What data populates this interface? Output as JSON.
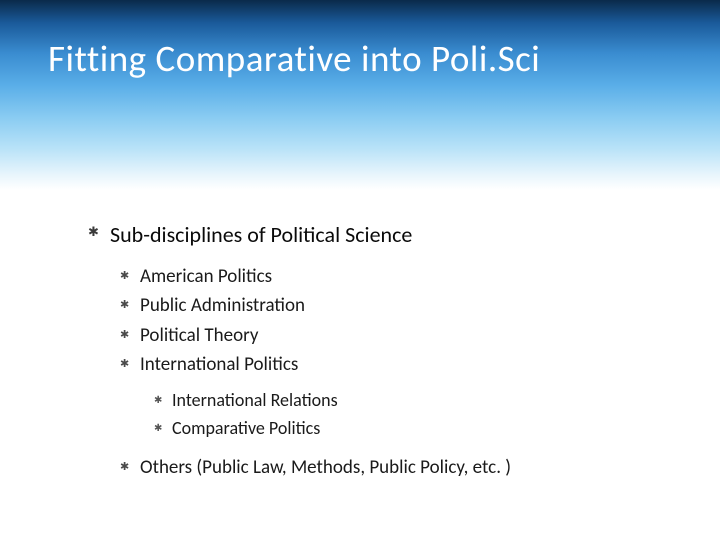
{
  "slide": {
    "title": "Fitting Comparative into Poli.Sci",
    "header_gradient": {
      "stops": [
        "#0a2a4a",
        "#1a5a9a",
        "#3a8cd0",
        "#5aaee8",
        "#8accf2",
        "#b8e2f8",
        "#e8f5fc",
        "#ffffff"
      ]
    },
    "title_color": "#ffffff",
    "title_fontsize": 37,
    "body_fontsize_l1": 22,
    "body_fontsize_l2": 19,
    "body_fontsize_l3": 18,
    "bullet_glyph": "✱",
    "bullet_color": "#3a3a3a",
    "l1": {
      "heading": "Sub-disciplines of Political Science",
      "items_a": [
        "American Politics",
        "Public Administration",
        "Political Theory",
        "International Politics"
      ],
      "sub_items": [
        "International Relations",
        "Comparative Politics"
      ],
      "items_b": [
        "Others (Public Law, Methods, Public  Policy, etc. )"
      ]
    }
  }
}
